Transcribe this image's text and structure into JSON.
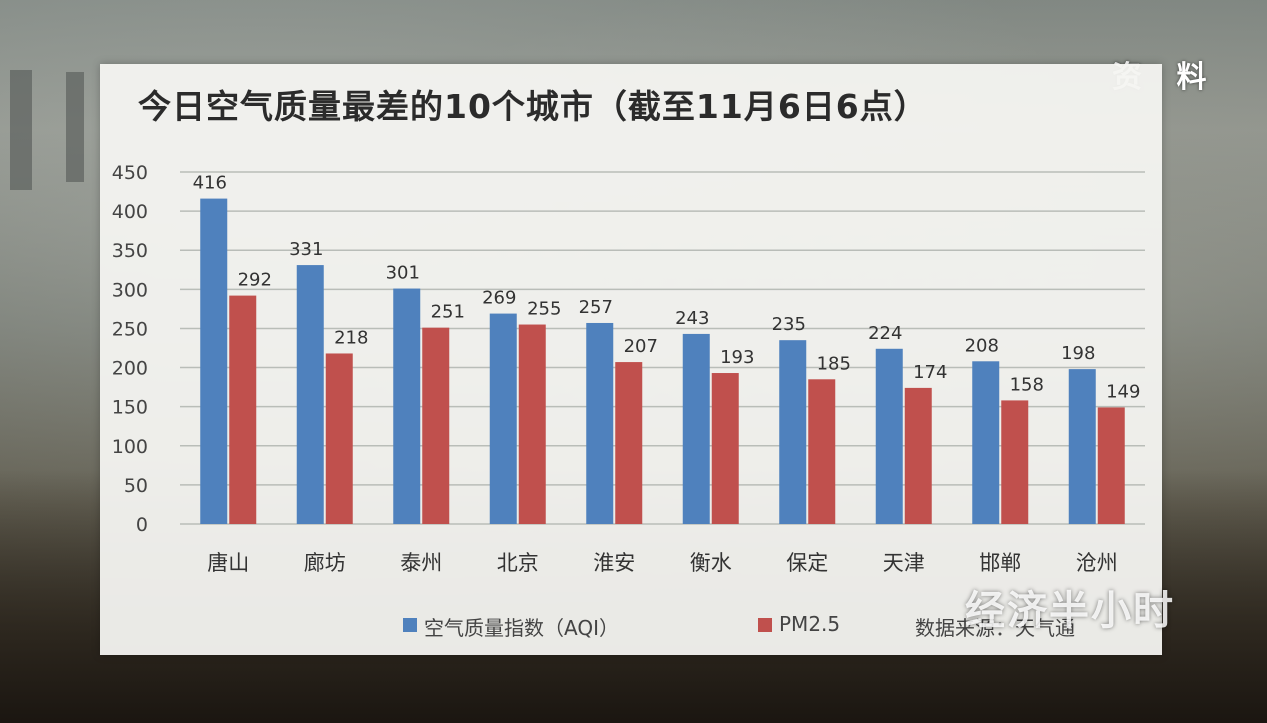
{
  "corner_tag": "资 料",
  "title": "今日空气质量最差的10个城市（截至11月6日6点）",
  "legend": {
    "aqi": "空气质量指数（AQI）",
    "pm25": "PM2.5",
    "source": "数据来源：天气通"
  },
  "watermark": "经济半小时",
  "colors": {
    "aqi": "#4f81bd",
    "pm25": "#c0504d",
    "grid": "#b9bdb8",
    "axis_text": "#444444"
  },
  "chart_data": {
    "type": "bar",
    "title": "今日空气质量最差的10个城市（截至11月6日6点）",
    "categories": [
      "唐山",
      "廊坊",
      "泰州",
      "北京",
      "淮安",
      "衡水",
      "保定",
      "天津",
      "邯郸",
      "沧州"
    ],
    "series": [
      {
        "name": "空气质量指数（AQI）",
        "values": [
          416,
          331,
          301,
          269,
          257,
          243,
          235,
          224,
          208,
          198
        ]
      },
      {
        "name": "PM2.5",
        "values": [
          292,
          218,
          251,
          255,
          207,
          193,
          185,
          174,
          158,
          149
        ]
      }
    ],
    "ylim": [
      0,
      450
    ],
    "yticks": [
      0,
      50,
      100,
      150,
      200,
      250,
      300,
      350,
      400,
      450
    ],
    "grid": true,
    "legend_position": "bottom"
  }
}
